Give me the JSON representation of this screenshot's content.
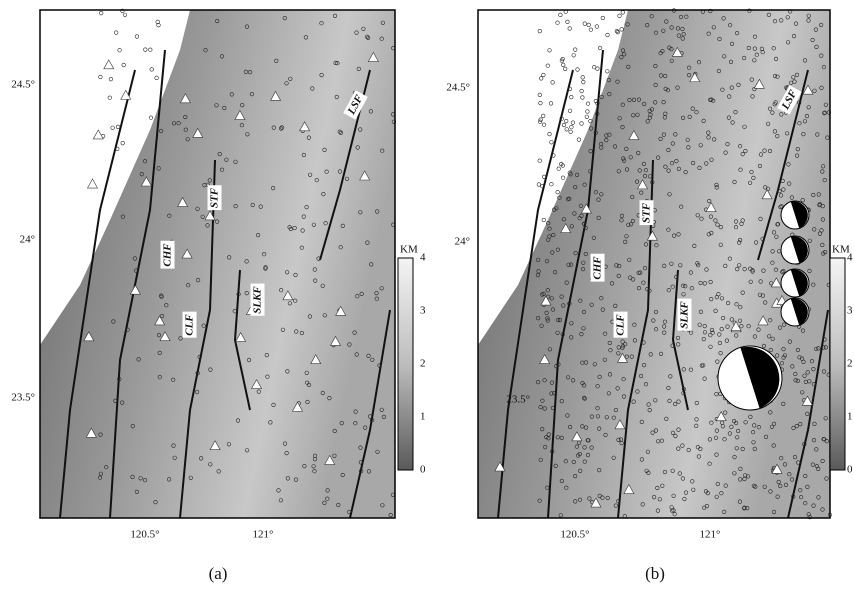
{
  "panels": [
    {
      "caption": "(a)",
      "lat_labels": [
        "24.5°",
        "24°",
        "23.5°"
      ],
      "lon_labels": [
        "120.5°",
        "121°"
      ],
      "faults": [
        "CHF",
        "CLF",
        "STF",
        "SLKF",
        "LSF"
      ],
      "colorbar": {
        "title": "KM",
        "labels": [
          "4",
          "3",
          "2",
          "1",
          "0"
        ]
      }
    },
    {
      "caption": "(b)",
      "lat_labels": [
        "24.5°",
        "24°",
        "23.5°"
      ],
      "lon_labels": [
        "120.5°",
        "121°"
      ],
      "faults": [
        "CHF",
        "CLF",
        "STF",
        "SLKF",
        "LSF"
      ],
      "colorbar": {
        "title": "KM",
        "labels": [
          "4",
          "3",
          "2",
          "1",
          "0"
        ]
      }
    }
  ]
}
